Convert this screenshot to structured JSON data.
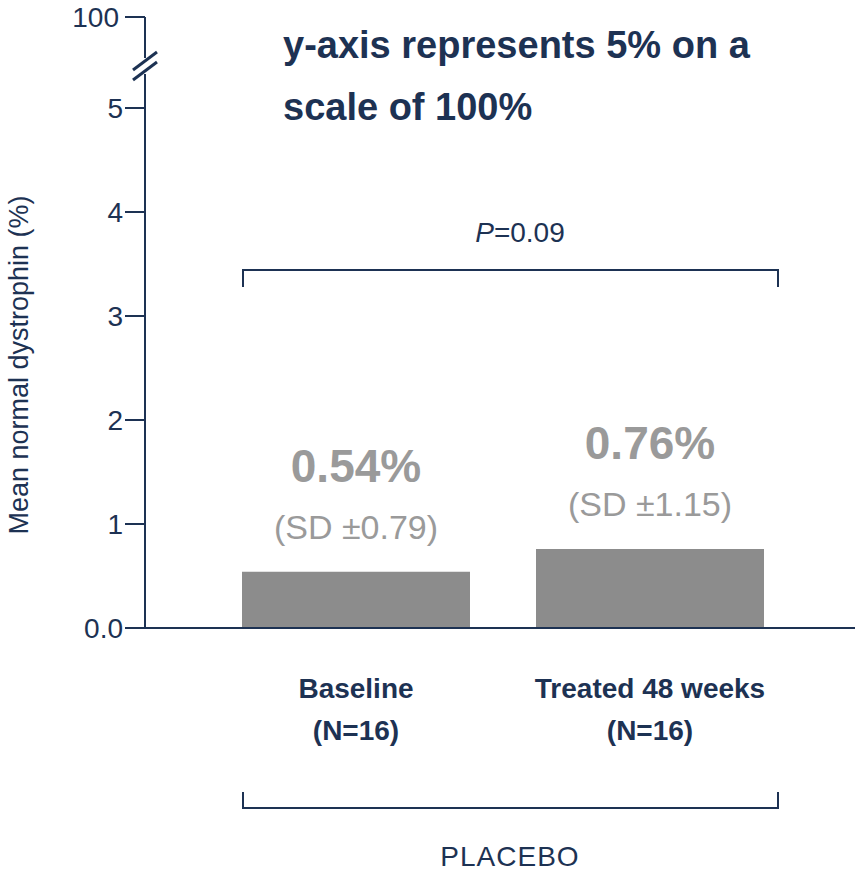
{
  "chart_data": {
    "type": "bar",
    "title": "y-axis represents 5% on a scale of 100%",
    "y_label": "Mean normal dystrophin (%)",
    "categories": [
      "Baseline (N=16)",
      "Treated 48 weeks (N=16)"
    ],
    "values": [
      0.54,
      0.76
    ],
    "value_labels": [
      "0.54%",
      "0.76%"
    ],
    "sd_labels": [
      "(SD ±0.79)",
      "(SD ±1.15)"
    ],
    "color": "#8c8c8c",
    "ylim": [
      0,
      5
    ],
    "yticks": [
      {
        "value": 0,
        "label": "0.0"
      },
      1,
      2,
      3,
      4,
      5
    ],
    "y_break_top": 100,
    "annotation": "P=0.09",
    "group_label": "PLACEBO",
    "data_labels": true,
    "grid": false
  }
}
